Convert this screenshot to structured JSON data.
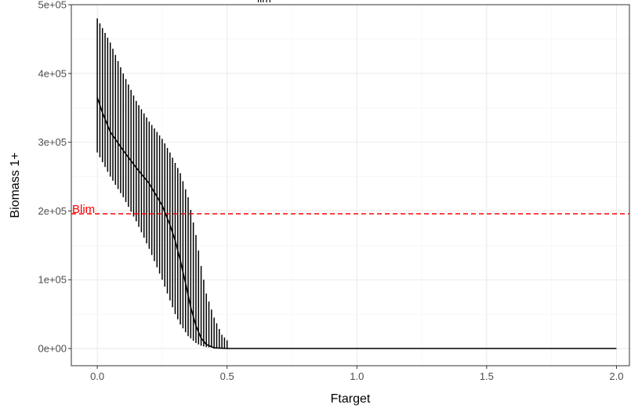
{
  "chart_data": {
    "type": "line",
    "title": "lim",
    "xlabel": "Ftarget",
    "ylabel": "Biomass 1+",
    "xlim": [
      -0.1,
      2.05
    ],
    "ylim": [
      -25000,
      500000
    ],
    "x_ticks": [
      0.0,
      0.5,
      1.0,
      1.5,
      2.0
    ],
    "x_tick_labels": [
      "0.0",
      "0.5",
      "1.0",
      "1.5",
      "2.0"
    ],
    "y_ticks": [
      0,
      100000,
      200000,
      300000,
      400000,
      500000
    ],
    "y_tick_labels": [
      "0e+00",
      "1e+05",
      "2e+05",
      "3e+05",
      "4e+05",
      "5e+05"
    ],
    "grid": true,
    "reference_line": {
      "label": "Blim",
      "y": 196000,
      "color": "#ff0000",
      "style": "dashed"
    },
    "median_line": {
      "x": [
        0.0,
        0.02,
        0.05,
        0.1,
        0.15,
        0.2,
        0.25,
        0.28,
        0.3,
        0.32,
        0.34,
        0.36,
        0.38,
        0.4,
        0.42,
        0.45,
        0.5,
        1.0,
        1.5,
        2.0
      ],
      "y": [
        365000,
        343000,
        315000,
        288000,
        263000,
        240000,
        208000,
        180000,
        157000,
        128000,
        95000,
        60000,
        33000,
        15000,
        6000,
        1000,
        0,
        0,
        0,
        0
      ]
    },
    "ribbon_x": [
      0.0,
      0.05,
      0.1,
      0.15,
      0.2,
      0.25,
      0.28,
      0.3,
      0.32,
      0.35,
      0.38,
      0.4,
      0.42,
      0.45,
      0.48,
      0.5
    ],
    "ribbon_upper": [
      480000,
      445000,
      400000,
      360000,
      330000,
      305000,
      285000,
      270000,
      255000,
      220000,
      165000,
      120000,
      80000,
      45000,
      20000,
      12000
    ],
    "ribbon_lower": [
      285000,
      250000,
      220000,
      185000,
      145000,
      100000,
      70000,
      50000,
      35000,
      18000,
      8000,
      4000,
      2000,
      1000,
      500,
      0
    ],
    "interval_step": 0.01,
    "interval_max_x": 0.5,
    "line_color": "#000000"
  }
}
